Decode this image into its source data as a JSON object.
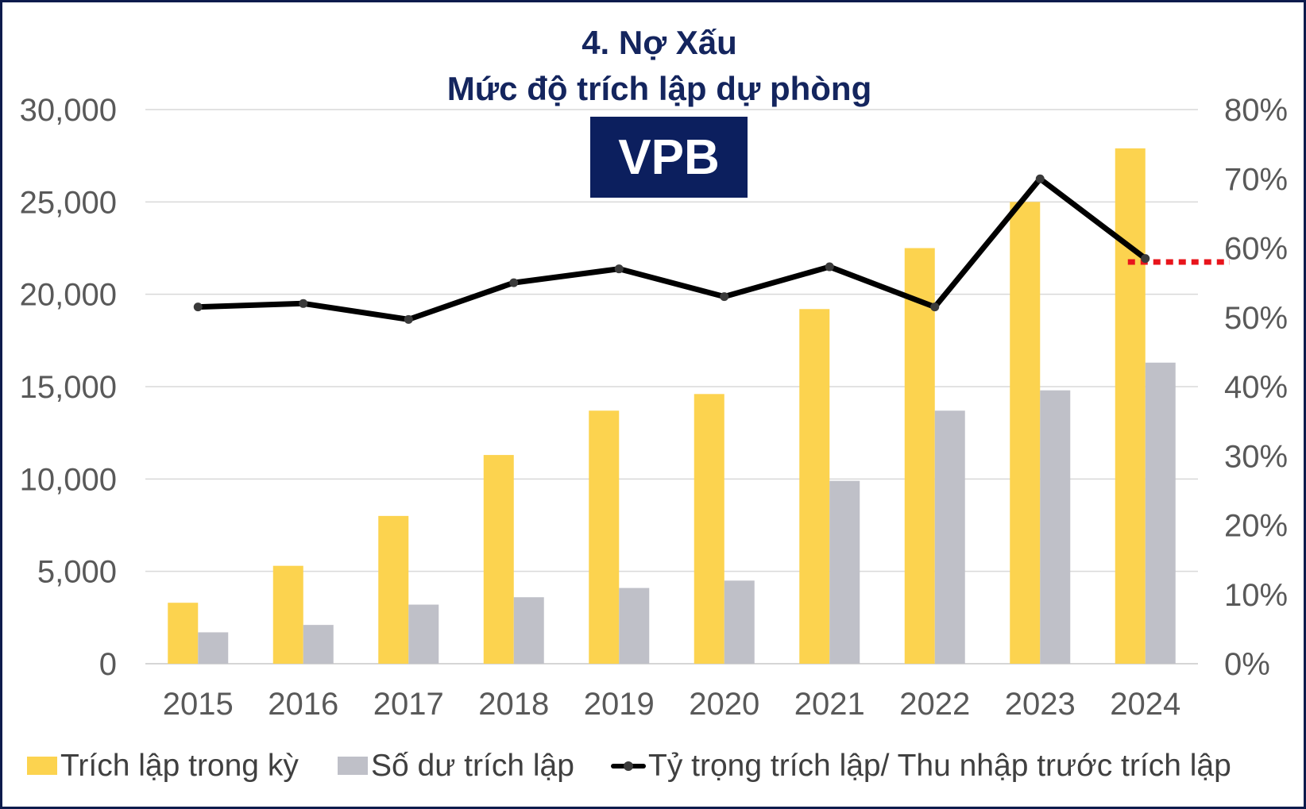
{
  "chart_data": {
    "type": "bar",
    "title": "4. Nợ Xấu",
    "subtitle": "Mức độ trích lập dự phòng",
    "badge": "VPB",
    "categories": [
      "2015",
      "2016",
      "2017",
      "2018",
      "2019",
      "2020",
      "2021",
      "2022",
      "2023",
      "2024"
    ],
    "series": [
      {
        "name": "Trích lập trong kỳ",
        "type": "bar",
        "axis": "left",
        "color": "#fcd34f",
        "values": [
          3300,
          5300,
          8000,
          11300,
          13700,
          14600,
          19200,
          22500,
          25000,
          27900
        ]
      },
      {
        "name": "Số dư trích lập",
        "type": "bar",
        "axis": "left",
        "color": "#bfc0c8",
        "values": [
          1700,
          2100,
          3200,
          3600,
          4100,
          4500,
          9900,
          13700,
          14800,
          16300
        ]
      },
      {
        "name": "Tỷ trọng trích lập/ Thu nhập trước trích lập",
        "type": "line",
        "axis": "right",
        "color": "#000000",
        "values": [
          0.515,
          0.52,
          0.497,
          0.55,
          0.57,
          0.53,
          0.573,
          0.515,
          0.7,
          0.585
        ]
      }
    ],
    "reference_line": {
      "axis": "right",
      "value": 0.58,
      "color": "#e8141b",
      "style": "dotted"
    },
    "y_left": {
      "ylim": [
        0,
        30000
      ],
      "ticks": [
        "0",
        "5,000",
        "10,000",
        "15,000",
        "20,000",
        "25,000",
        "30,000"
      ]
    },
    "y_right": {
      "ylim": [
        0,
        0.8
      ],
      "ticks": [
        "0%",
        "10%",
        "20%",
        "30%",
        "40%",
        "50%",
        "60%",
        "70%",
        "80%"
      ]
    },
    "grid": true,
    "legend_position": "bottom"
  }
}
